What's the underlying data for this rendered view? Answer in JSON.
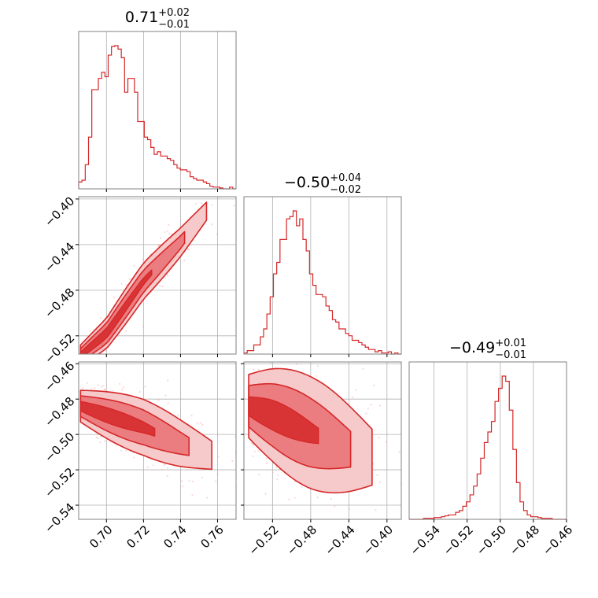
{
  "chart_data": {
    "type": "corner",
    "colors": {
      "line": "#d62728",
      "fill_dark": "#e86a6e",
      "fill_light": "#f6c9ca",
      "points": "#f4a6a8",
      "grid": "#b0b0b0",
      "frame": "#808080"
    },
    "grid": true,
    "parameters": [
      {
        "title_value": "0.71",
        "title_plus": "+0.02",
        "title_minus": "−0.01",
        "range": [
          0.685,
          0.77
        ],
        "ticks": [
          0.7,
          0.72,
          0.74,
          0.76
        ],
        "tick_labels": [
          "0.70",
          "0.72",
          "0.74",
          "0.76"
        ],
        "hist_bin_edges": [
          0.685,
          0.771
        ],
        "hist_counts": [
          8,
          10,
          28,
          60,
          115,
          115,
          128,
          135,
          130,
          155,
          165,
          166,
          162,
          152,
          112,
          128,
          128,
          112,
          78,
          78,
          60,
          57,
          48,
          40,
          43,
          38,
          38,
          35,
          33,
          28,
          24,
          22,
          22,
          20,
          14,
          12,
          10,
          10,
          8,
          6,
          3,
          2,
          2,
          1,
          0,
          0,
          2,
          0
        ]
      },
      {
        "title_value": "−0.50",
        "title_plus": "+0.04",
        "title_minus": "−0.02",
        "range": [
          -0.55,
          -0.385
        ],
        "ticks": [
          -0.52,
          -0.48,
          -0.44,
          -0.4
        ],
        "tick_labels": [
          "−0.52",
          "−0.48",
          "−0.44",
          "−0.40"
        ],
        "hist_counts": [
          1,
          3,
          3,
          8,
          8,
          15,
          22,
          35,
          50,
          70,
          80,
          100,
          100,
          118,
          120,
          125,
          112,
          118,
          100,
          90,
          70,
          60,
          52,
          52,
          50,
          42,
          38,
          30,
          28,
          22,
          22,
          18,
          16,
          12,
          12,
          10,
          8,
          6,
          4,
          4,
          2,
          3,
          1,
          1,
          2,
          0,
          1,
          0
        ]
      },
      {
        "title_value": "−0.49",
        "title_plus": "+0.01",
        "title_minus": "−0.01",
        "range": [
          -0.555,
          -0.46
        ],
        "ticks": [
          -0.54,
          -0.52,
          -0.5,
          -0.48,
          -0.46
        ],
        "tick_labels": [
          "−0.54",
          "−0.52",
          "−0.50",
          "−0.48",
          "−0.46"
        ],
        "hist_counts": [
          0,
          0,
          0,
          0,
          1,
          1,
          1,
          2,
          2,
          3,
          4,
          5,
          5,
          8,
          10,
          15,
          20,
          28,
          38,
          52,
          70,
          88,
          100,
          112,
          135,
          150,
          164,
          158,
          125,
          80,
          42,
          20,
          10,
          5,
          3,
          3,
          2,
          1,
          1,
          1,
          0,
          0,
          0,
          0
        ]
      }
    ],
    "pair_2_1": {
      "x_param": 0,
      "y_param": 1,
      "y_ticks": [
        -0.52,
        -0.48,
        -0.44,
        -0.4
      ],
      "y_tick_labels": [
        "−0.52",
        "−0.48",
        "−0.44",
        "−0.40"
      ],
      "trend": [
        [
          0.686,
          -0.537
        ],
        [
          0.7,
          -0.518
        ],
        [
          0.72,
          -0.472
        ],
        [
          0.74,
          -0.438
        ],
        [
          0.757,
          -0.405
        ]
      ],
      "spread": 0.006
    },
    "pair_3_1": {
      "x_param": 0,
      "y_param": 2,
      "y_ticks": [
        -0.54,
        -0.52,
        -0.5,
        -0.48,
        -0.46
      ],
      "y_tick_labels": [
        "−0.54",
        "−0.52",
        "−0.50",
        "−0.48",
        "−0.46"
      ],
      "trend": [
        [
          0.686,
          -0.484
        ],
        [
          0.7,
          -0.489
        ],
        [
          0.72,
          -0.496
        ],
        [
          0.74,
          -0.505
        ],
        [
          0.76,
          -0.513
        ]
      ],
      "spread": 0.006
    },
    "pair_3_2": {
      "x_param": 1,
      "y_param": 2,
      "y_ticks": [
        -0.54,
        -0.52,
        -0.5,
        -0.48,
        -0.46
      ],
      "y_tick_labels": [
        "−0.54",
        "−0.52",
        "−0.50",
        "−0.48",
        "−0.46"
      ],
      "trend": [
        [
          -0.545,
          -0.484
        ],
        [
          -0.52,
          -0.489
        ],
        [
          -0.48,
          -0.499
        ],
        [
          -0.44,
          -0.508
        ],
        [
          -0.41,
          -0.514
        ]
      ],
      "spread": 0.012
    }
  }
}
